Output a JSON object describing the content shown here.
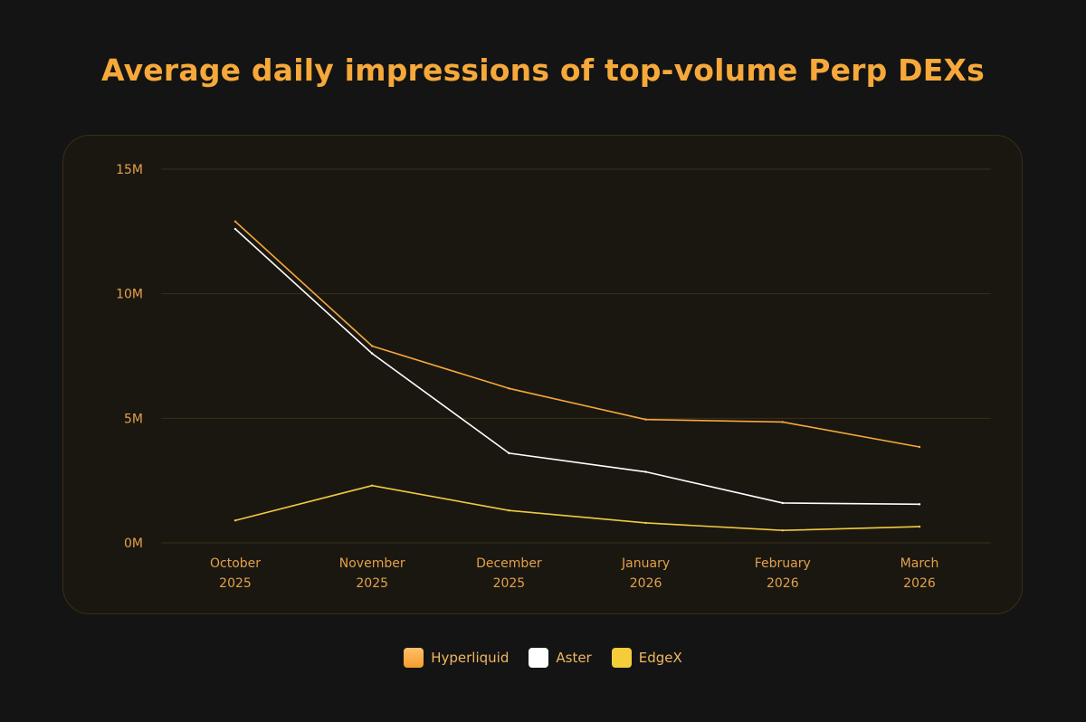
{
  "chart_data": {
    "type": "line",
    "title": "Average daily impressions of top-volume Perp DEXs",
    "xlabel": "",
    "ylabel": "",
    "categories": [
      [
        "October",
        "2025"
      ],
      [
        "November",
        "2025"
      ],
      [
        "December",
        "2025"
      ],
      [
        "January",
        "2026"
      ],
      [
        "February",
        "2026"
      ],
      [
        "March",
        "2026"
      ]
    ],
    "ylim": [
      0,
      15000000
    ],
    "yticks": [
      0,
      5000000,
      10000000,
      15000000
    ],
    "ytick_labels": [
      "0M",
      "5M",
      "10M",
      "15M"
    ],
    "grid": true,
    "legend_position": "bottom-center",
    "series": [
      {
        "name": "Hyperliquid",
        "color": "#f6a93a",
        "swatch_color": "#f8b24a",
        "values": [
          12900000,
          7900000,
          6200000,
          4950000,
          4850000,
          3850000
        ]
      },
      {
        "name": "Aster",
        "color": "#ffffff",
        "swatch_color": "#ffffff",
        "values": [
          12600000,
          7600000,
          3600000,
          2850000,
          1600000,
          1550000
        ]
      },
      {
        "name": "EdgeX",
        "color": "#f2c940",
        "swatch_color": "#f5cd3a",
        "values": [
          900000,
          2300000,
          1300000,
          800000,
          500000,
          650000
        ]
      }
    ]
  },
  "colors": {
    "background": "#141414",
    "panel": "#1a1711",
    "grid": "#3a2e17",
    "accent": "#f6a93a",
    "tick_text": "#e3a04a"
  }
}
